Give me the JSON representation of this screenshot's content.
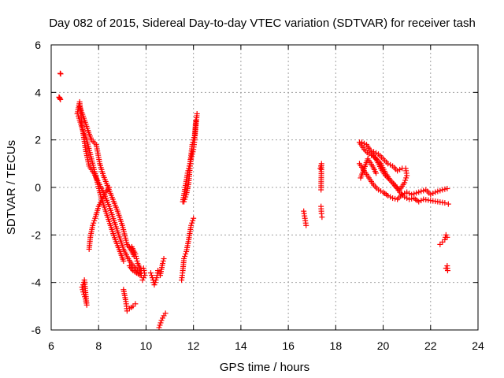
{
  "chart_data": {
    "type": "scatter",
    "title": "Day 082 of 2015, Sidereal Day-to-day VTEC variation (SDTVAR) for receiver tash",
    "xlabel": "GPS time / hours",
    "ylabel": "SDTVAR / TECUs",
    "xlim": [
      6,
      24
    ],
    "ylim": [
      -6,
      6
    ],
    "x_ticks": [
      6,
      8,
      10,
      12,
      14,
      16,
      18,
      20,
      22,
      24
    ],
    "y_ticks": [
      -6,
      -4,
      -2,
      0,
      2,
      4,
      6
    ],
    "x_tick_labels": [
      "6",
      "8",
      "10",
      "12",
      "14",
      "16",
      "18",
      "20",
      "22",
      "24"
    ],
    "y_tick_labels": [
      "-6",
      "-4",
      "-2",
      "0",
      "2",
      "4",
      "6"
    ],
    "grid": true,
    "marker": "plus",
    "color": "#ff0000",
    "series": [
      {
        "name": "SDTVAR",
        "segments": [
          [
            [
              6.38,
              4.8
            ],
            [
              6.4,
              4.78
            ]
          ],
          [
            [
              6.33,
              3.8
            ],
            [
              6.35,
              3.78
            ],
            [
              6.37,
              3.74
            ],
            [
              6.39,
              3.7
            ]
          ],
          [
            [
              7.1,
              3.1
            ],
            [
              7.2,
              3.6
            ],
            [
              7.3,
              2.6
            ],
            [
              7.45,
              1.6
            ],
            [
              7.6,
              0.9
            ],
            [
              7.8,
              0.6
            ],
            [
              8.0,
              0.2
            ],
            [
              8.2,
              -0.2
            ],
            [
              8.45,
              -0.8
            ],
            [
              8.65,
              -1.4
            ],
            [
              8.85,
              -2.0
            ],
            [
              9.05,
              -2.6
            ],
            [
              9.25,
              -3.0
            ],
            [
              9.45,
              -3.3
            ],
            [
              9.7,
              -3.55
            ],
            [
              9.8,
              -3.7
            ]
          ],
          [
            [
              7.15,
              3.0
            ],
            [
              7.3,
              2.5
            ],
            [
              7.5,
              2.0
            ],
            [
              7.7,
              1.2
            ],
            [
              7.9,
              0.4
            ],
            [
              8.1,
              -0.4
            ],
            [
              8.3,
              -1.0
            ],
            [
              8.5,
              -1.6
            ],
            [
              8.7,
              -2.2
            ],
            [
              8.9,
              -2.7
            ],
            [
              9.05,
              -3.1
            ]
          ],
          [
            [
              7.2,
              3.4
            ],
            [
              7.35,
              3.0
            ],
            [
              7.55,
              2.4
            ],
            [
              7.7,
              2.0
            ],
            [
              7.9,
              1.8
            ],
            [
              8.05,
              1.0
            ],
            [
              8.2,
              0.5
            ],
            [
              8.4,
              0.0
            ],
            [
              8.6,
              -0.5
            ],
            [
              8.8,
              -1.0
            ],
            [
              9.0,
              -1.6
            ],
            [
              9.2,
              -2.4
            ],
            [
              9.35,
              -2.6
            ],
            [
              9.5,
              -2.9
            ]
          ],
          [
            [
              7.3,
              -4.2
            ],
            [
              7.35,
              -4.4
            ],
            [
              7.45,
              -4.7
            ],
            [
              7.5,
              -4.95
            ],
            [
              7.4,
              -3.9
            ],
            [
              7.35,
              -4.1
            ]
          ],
          [
            [
              7.6,
              -2.6
            ],
            [
              7.65,
              -2.1
            ],
            [
              7.75,
              -1.6
            ],
            [
              7.85,
              -1.3
            ],
            [
              8.0,
              -0.8
            ],
            [
              8.2,
              -0.4
            ],
            [
              8.3,
              -0.2
            ],
            [
              8.45,
              0.0
            ]
          ],
          [
            [
              9.05,
              -4.3
            ],
            [
              9.15,
              -4.8
            ],
            [
              9.2,
              -5.2
            ],
            [
              9.3,
              -5.1
            ],
            [
              9.45,
              -5.0
            ],
            [
              9.55,
              -4.9
            ]
          ],
          [
            [
              9.3,
              -3.3
            ],
            [
              9.45,
              -3.5
            ],
            [
              9.6,
              -3.6
            ],
            [
              9.75,
              -3.7
            ],
            [
              9.8,
              -3.5
            ],
            [
              9.65,
              -3.2
            ],
            [
              9.55,
              -2.8
            ],
            [
              9.4,
              -2.5
            ]
          ],
          [
            [
              9.9,
              -3.4
            ],
            [
              9.95,
              -3.7
            ],
            [
              9.85,
              -3.9
            ]
          ],
          [
            [
              10.2,
              -3.6
            ],
            [
              10.3,
              -3.9
            ],
            [
              10.35,
              -4.1
            ],
            [
              10.45,
              -3.8
            ],
            [
              10.5,
              -3.5
            ],
            [
              10.6,
              -3.7
            ],
            [
              10.7,
              -3.2
            ],
            [
              10.75,
              -3.0
            ]
          ],
          [
            [
              10.55,
              -5.9
            ],
            [
              10.65,
              -5.6
            ],
            [
              10.75,
              -5.4
            ],
            [
              10.82,
              -5.3
            ]
          ],
          [
            [
              11.5,
              -3.9
            ],
            [
              11.55,
              -3.5
            ],
            [
              11.6,
              -3.0
            ],
            [
              11.7,
              -2.7
            ],
            [
              11.8,
              -2.2
            ],
            [
              11.9,
              -1.6
            ],
            [
              12.0,
              -1.3
            ]
          ],
          [
            [
              11.6,
              -0.6
            ],
            [
              11.7,
              -0.3
            ],
            [
              11.8,
              0.2
            ],
            [
              11.85,
              0.8
            ],
            [
              11.9,
              1.2
            ],
            [
              12.0,
              1.6
            ],
            [
              12.05,
              2.0
            ],
            [
              12.1,
              2.6
            ],
            [
              12.15,
              3.1
            ]
          ],
          [
            [
              11.55,
              -0.6
            ],
            [
              11.65,
              0.0
            ],
            [
              11.75,
              0.6
            ],
            [
              11.85,
              1.0
            ],
            [
              11.95,
              1.8
            ],
            [
              12.05,
              2.2
            ],
            [
              12.1,
              2.8
            ]
          ],
          [
            [
              16.65,
              -1.0
            ],
            [
              16.7,
              -1.3
            ],
            [
              16.75,
              -1.6
            ]
          ],
          [
            [
              17.35,
              0.8
            ],
            [
              17.4,
              1.0
            ],
            [
              17.38,
              -0.1
            ]
          ],
          [
            [
              17.38,
              -0.8
            ],
            [
              17.4,
              -1.1
            ],
            [
              17.42,
              -1.25
            ]
          ],
          [
            [
              19.0,
              1.9
            ],
            [
              19.2,
              1.6
            ],
            [
              19.4,
              1.4
            ],
            [
              19.6,
              1.3
            ],
            [
              19.9,
              1.0
            ],
            [
              20.1,
              0.6
            ],
            [
              20.3,
              0.3
            ],
            [
              20.5,
              0.1
            ],
            [
              20.7,
              -0.2
            ],
            [
              20.9,
              -0.4
            ],
            [
              21.1,
              -0.5
            ],
            [
              21.3,
              -0.45
            ],
            [
              21.5,
              -0.6
            ],
            [
              21.7,
              -0.5
            ],
            [
              22.0,
              -0.55
            ],
            [
              22.3,
              -0.6
            ],
            [
              22.6,
              -0.65
            ],
            [
              22.75,
              -0.7
            ]
          ],
          [
            [
              19.0,
              1.0
            ],
            [
              19.2,
              0.7
            ],
            [
              19.4,
              0.4
            ],
            [
              19.6,
              0.1
            ],
            [
              19.8,
              -0.1
            ],
            [
              20.0,
              -0.2
            ],
            [
              20.2,
              -0.35
            ],
            [
              20.4,
              -0.45
            ],
            [
              20.6,
              -0.5
            ],
            [
              20.8,
              -0.3
            ],
            [
              21.0,
              -0.2
            ],
            [
              21.2,
              -0.3
            ],
            [
              21.5,
              -0.2
            ],
            [
              21.8,
              -0.1
            ],
            [
              22.0,
              -0.3
            ],
            [
              22.2,
              -0.2
            ],
            [
              22.5,
              -0.1
            ],
            [
              22.7,
              -0.05
            ]
          ],
          [
            [
              19.1,
              1.9
            ],
            [
              19.3,
              1.8
            ],
            [
              19.5,
              1.5
            ],
            [
              19.7,
              1.2
            ],
            [
              19.9,
              0.8
            ],
            [
              20.1,
              0.5
            ],
            [
              20.3,
              0.3
            ],
            [
              20.55,
              0.0
            ],
            [
              20.7,
              -0.1
            ],
            [
              20.9,
              0.2
            ],
            [
              21.0,
              0.5
            ],
            [
              20.95,
              0.8
            ],
            [
              20.8,
              0.8
            ],
            [
              20.6,
              0.7
            ],
            [
              20.4,
              0.9
            ],
            [
              20.2,
              1.0
            ],
            [
              20.0,
              1.2
            ],
            [
              19.8,
              1.4
            ],
            [
              19.6,
              1.5
            ]
          ],
          [
            [
              19.05,
              0.4
            ],
            [
              19.2,
              0.8
            ],
            [
              19.35,
              1.2
            ],
            [
              19.55,
              0.9
            ],
            [
              19.7,
              0.6
            ]
          ],
          [
            [
              22.4,
              -2.4
            ],
            [
              22.5,
              -2.3
            ],
            [
              22.6,
              -2.2
            ],
            [
              22.65,
              -2.0
            ],
            [
              22.7,
              -2.1
            ]
          ],
          [
            [
              22.65,
              -3.4
            ],
            [
              22.7,
              -3.3
            ],
            [
              22.72,
              -3.5
            ]
          ]
        ]
      }
    ]
  }
}
